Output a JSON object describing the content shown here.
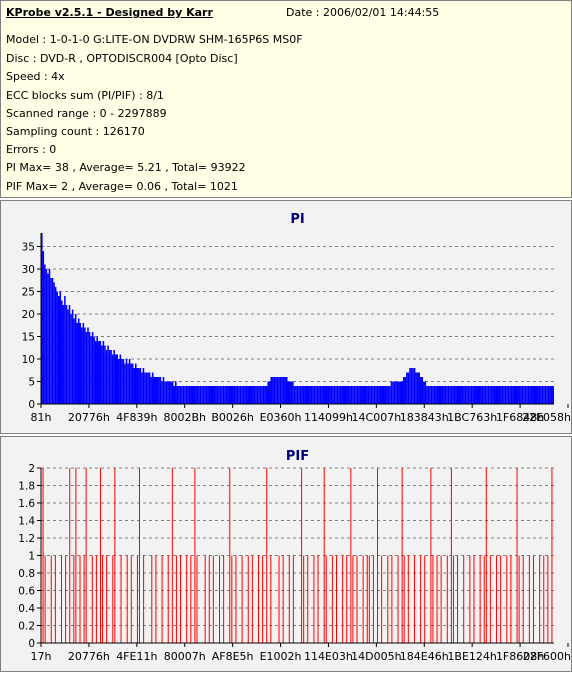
{
  "header": {
    "title": "KProbe v2.5.1 - Designed by Karr",
    "date": "Date : 2006/02/01 14:44:55",
    "lines": [
      "Model : 1-0-1-0 G:LITE-ON DVDRW SHM-165P6S MS0F",
      "Disc : DVD-R , OPTODISCR004 [Opto Disc]",
      "Speed : 4x",
      "ECC blocks sum (PI/PIF) : 8/1",
      "Scanned range : 0 - 2297889",
      "Sampling count : 126170",
      "Errors : 0",
      "PI Max= 38 , Average= 5.21 , Total= 93922",
      "PIF Max= 2 , Average= 0.06 , Total= 1021"
    ]
  },
  "colors": {
    "pi": "#0000ff",
    "pif": "#ff0000",
    "title": "#000080",
    "grid": "#808080",
    "panel_bg": "#f2f2f2",
    "info_bg": "#ffffe5"
  },
  "chart_data": [
    {
      "type": "area",
      "title": "PI",
      "xlabel": "",
      "ylabel": "",
      "ylim": [
        0,
        38
      ],
      "yticks": [
        "0",
        "5",
        "10",
        "15",
        "20",
        "25",
        "30",
        "35"
      ],
      "ytick_values": [
        0,
        5,
        10,
        15,
        20,
        25,
        30,
        35
      ],
      "x_tick_labels": [
        "81h",
        "20776h",
        "4F839h",
        "8002Bh",
        "B0026h",
        "E0360h",
        "114099h",
        "14C007h",
        "183843h",
        "1BC763h",
        "1F6848h",
        "22E058h"
      ],
      "grid": true,
      "series": [
        {
          "values": [
            38,
            34,
            31,
            30,
            29,
            30,
            28,
            28,
            27,
            26,
            25,
            24,
            25,
            23,
            22,
            24,
            22,
            21,
            22,
            20,
            21,
            19,
            20,
            18,
            19,
            18,
            17,
            18,
            17,
            16,
            17,
            16,
            15,
            16,
            15,
            14,
            15,
            14,
            14,
            13,
            14,
            13,
            12,
            13,
            12,
            12,
            11,
            12,
            11,
            11,
            10,
            11,
            10,
            10,
            9,
            10,
            9,
            10,
            9,
            9,
            8,
            9,
            8,
            8,
            8,
            7,
            8,
            7,
            7,
            7,
            7,
            6,
            7,
            6,
            6,
            6,
            6,
            6,
            5,
            6,
            5,
            5,
            5,
            5,
            5,
            5,
            4,
            5,
            4,
            4,
            4,
            4,
            4,
            4,
            4,
            4,
            4,
            4,
            4,
            4,
            4,
            4,
            4,
            4,
            4,
            4,
            4,
            4,
            4,
            4,
            4,
            4,
            4,
            4,
            4,
            4,
            4,
            4,
            4,
            4,
            4,
            4,
            4,
            4,
            4,
            4,
            4,
            4,
            4,
            4,
            4,
            4,
            4,
            4,
            4,
            4,
            4,
            4,
            4,
            4,
            4,
            4,
            4,
            4,
            4,
            4,
            4,
            5,
            5,
            6,
            6,
            6,
            6,
            6,
            6,
            6,
            6,
            6,
            6,
            6,
            5,
            5,
            5,
            5,
            4,
            4,
            4,
            4,
            4,
            4,
            4,
            4,
            4,
            4,
            4,
            4,
            4,
            4,
            4,
            4,
            4,
            4,
            4,
            4,
            4,
            4,
            4,
            4,
            4,
            4,
            4,
            4,
            4,
            4,
            4,
            4,
            4,
            4,
            4,
            4,
            4,
            4,
            4,
            4,
            4,
            4,
            4,
            4,
            4,
            4,
            4,
            4,
            4,
            4,
            4,
            4,
            4,
            4,
            4,
            4,
            4,
            4,
            4,
            4,
            4,
            4,
            4,
            5,
            5,
            5,
            5,
            5,
            5,
            5,
            5,
            6,
            6,
            7,
            7,
            8,
            8,
            8,
            8,
            7,
            7,
            7,
            6,
            6,
            5,
            5,
            4,
            4,
            4,
            4,
            4,
            4,
            4,
            4,
            4,
            4,
            4,
            4,
            4,
            4,
            4,
            4,
            4,
            4,
            4,
            4,
            4,
            4,
            4,
            4,
            4,
            4,
            4,
            4,
            4,
            4,
            4,
            4,
            4,
            4,
            4,
            4,
            4,
            4,
            4,
            4,
            4,
            4,
            4,
            4,
            4,
            4,
            4,
            4,
            4,
            4,
            4,
            4,
            4,
            4,
            4,
            4,
            4,
            4,
            4,
            4,
            4,
            4,
            4,
            4,
            4,
            4,
            4,
            4,
            4,
            4,
            4,
            4,
            4,
            4,
            4,
            4,
            4,
            4,
            4,
            4,
            4,
            4,
            4
          ]
        }
      ]
    },
    {
      "type": "bar",
      "title": "PIF",
      "xlabel": "",
      "ylabel": "",
      "ylim": [
        0,
        2
      ],
      "yticks": [
        "0",
        "0.2",
        "0.4",
        "0.6",
        "0.8",
        "1",
        "1.2",
        "1.4",
        "1.6",
        "1.8",
        "2"
      ],
      "ytick_values": [
        0,
        0.2,
        0.4,
        0.6,
        0.8,
        1,
        1.2,
        1.4,
        1.6,
        1.8,
        2
      ],
      "x_tick_labels": [
        "17h",
        "20776h",
        "4FE11h",
        "80007h",
        "AF8E5h",
        "E1002h",
        "114E03h",
        "14D005h",
        "184E46h",
        "1BE124h",
        "1F8608h",
        "22F600h"
      ],
      "grid": true,
      "series": [
        {
          "values": [
            0,
            2,
            1,
            0,
            0,
            1,
            0,
            1,
            0,
            0,
            1,
            0,
            1,
            0,
            2,
            0,
            1,
            2,
            0,
            1,
            0,
            1,
            2,
            0,
            0,
            1,
            0,
            1,
            0,
            2,
            1,
            0,
            1,
            0,
            0,
            1,
            2,
            0,
            0,
            1,
            0,
            0,
            1,
            0,
            1,
            0,
            0,
            1,
            2,
            0,
            1,
            0,
            0,
            0,
            1,
            0,
            1,
            0,
            0,
            1,
            0,
            0,
            1,
            0,
            2,
            0,
            1,
            0,
            1,
            0,
            0,
            1,
            0,
            1,
            0,
            2,
            1,
            0,
            0,
            0,
            1,
            0,
            1,
            0,
            1,
            0,
            0,
            1,
            0,
            1,
            0,
            0,
            2,
            1,
            0,
            1,
            0,
            0,
            1,
            0,
            0,
            1,
            0,
            1,
            0,
            0,
            1,
            0,
            1,
            0,
            2,
            0,
            1,
            0,
            0,
            0,
            1,
            0,
            1,
            0,
            0,
            1,
            0,
            1,
            0,
            0,
            0,
            2,
            1,
            0,
            1,
            0,
            0,
            1,
            0,
            1,
            0,
            0,
            2,
            1,
            0,
            0,
            1,
            0,
            1,
            0,
            0,
            1,
            0,
            1,
            0,
            2,
            1,
            0,
            1,
            0,
            0,
            1,
            0,
            1,
            1,
            0,
            1,
            0,
            2,
            0,
            1,
            0,
            0,
            1,
            0,
            1,
            0,
            0,
            1,
            0,
            2,
            1,
            0,
            1,
            0,
            0,
            1,
            0,
            0,
            1,
            0,
            1,
            0,
            0,
            2,
            1,
            0,
            1,
            0,
            1,
            0,
            0,
            1,
            0,
            2,
            1,
            0,
            1,
            0,
            0,
            1,
            0,
            0,
            1,
            0,
            1,
            0,
            0,
            1,
            0,
            1,
            2,
            0,
            1,
            0,
            0,
            1,
            0,
            1,
            0,
            0,
            1,
            0,
            1,
            0,
            0,
            2,
            1,
            0,
            1,
            0,
            0,
            1,
            0,
            1,
            0,
            0,
            1,
            0,
            1,
            0,
            1,
            0,
            2
          ]
        }
      ]
    }
  ]
}
